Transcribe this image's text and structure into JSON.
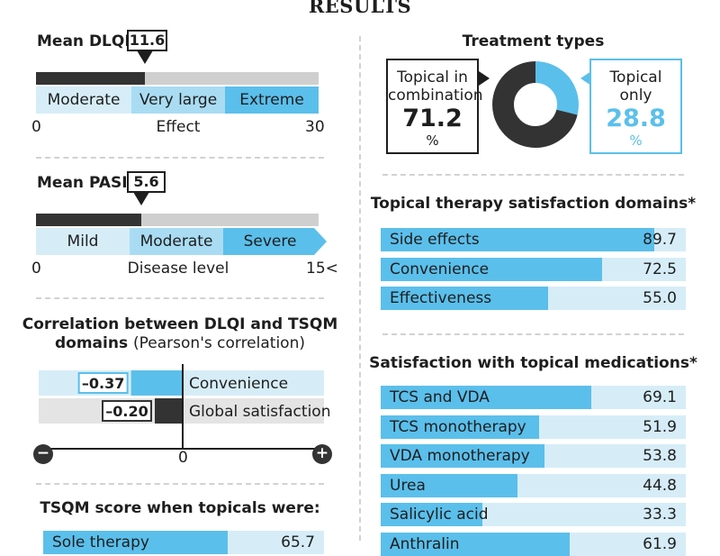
{
  "title": "RESULTS",
  "dlqi": {
    "label": "Mean DLQI",
    "value": "11.6",
    "mean": 11.6,
    "scale_min": 0,
    "scale_max": 30,
    "min_label": "0",
    "max_label": "30",
    "axis_label": "Effect",
    "segments": [
      "Moderate",
      "Very large",
      "Extreme"
    ]
  },
  "pasi": {
    "label": "Mean PASI",
    "value": "5.6",
    "mean": 5.6,
    "scale_min": 0,
    "scale_max": 15,
    "min_label": "0",
    "max_label": "15<",
    "axis_label": "Disease level",
    "segments": [
      "Mild",
      "Moderate",
      "Severe"
    ]
  },
  "correlation": {
    "title": "Correlation between DLQI and TSQM",
    "title_line2": "domains",
    "subtitle": "(Pearson's correlation)",
    "axis_zero": "0",
    "minus_symbol": "−",
    "plus_symbol": "+"
  },
  "tsqm_when": {
    "title": "TSQM score when topicals were:"
  },
  "treatment": {
    "title": "Treatment types",
    "combo_label_1": "Topical in",
    "combo_label_2": "combination",
    "combo_value": "71.2",
    "only_label_1": "Topical",
    "only_label_2": "only",
    "only_value": "28.8",
    "unit": "%"
  },
  "domains_title": "Topical therapy satisfaction domains*",
  "meds_title": "Satisfaction with topical medications*",
  "colors": {
    "dark": "#333333",
    "accent": "#5bbfeb",
    "light": "#d6edf8",
    "grey": "#cfcfcf"
  },
  "chart_data": [
    {
      "type": "pie",
      "title": "Treatment types",
      "categories": [
        "Topical in combination",
        "Topical only"
      ],
      "values": [
        71.2,
        28.8
      ]
    },
    {
      "type": "bar",
      "orientation": "horizontal",
      "title": "Correlation between DLQI and TSQM domains (Pearson's correlation)",
      "categories": [
        "Convenience",
        "Global satisfaction"
      ],
      "values": [
        -0.37,
        -0.2
      ],
      "labels": [
        "–0.37",
        "–0.20"
      ],
      "xlim": [
        -1,
        1
      ]
    },
    {
      "type": "bar",
      "orientation": "horizontal",
      "title": "Topical therapy satisfaction domains*",
      "categories": [
        "Side effects",
        "Convenience",
        "Effectiveness"
      ],
      "values": [
        89.7,
        72.5,
        55.0
      ],
      "labels": [
        "89.7",
        "72.5",
        "55.0"
      ],
      "xlim": [
        0,
        100
      ]
    },
    {
      "type": "bar",
      "orientation": "horizontal",
      "title": "Satisfaction with topical medications*",
      "categories": [
        "TCS and VDA",
        "TCS monotherapy",
        "VDA monotherapy",
        "Urea",
        "Salicylic acid",
        "Anthralin"
      ],
      "values": [
        69.1,
        51.9,
        53.8,
        44.8,
        33.3,
        61.9
      ],
      "labels": [
        "69.1",
        "51.9",
        "53.8",
        "44.8",
        "33.3",
        "61.9"
      ],
      "xlim": [
        0,
        100
      ]
    },
    {
      "type": "bar",
      "orientation": "horizontal",
      "title": "TSQM score when topicals were:",
      "categories": [
        "Sole therapy"
      ],
      "values": [
        65.7
      ],
      "labels": [
        "65.7"
      ],
      "xlim": [
        0,
        100
      ]
    }
  ]
}
